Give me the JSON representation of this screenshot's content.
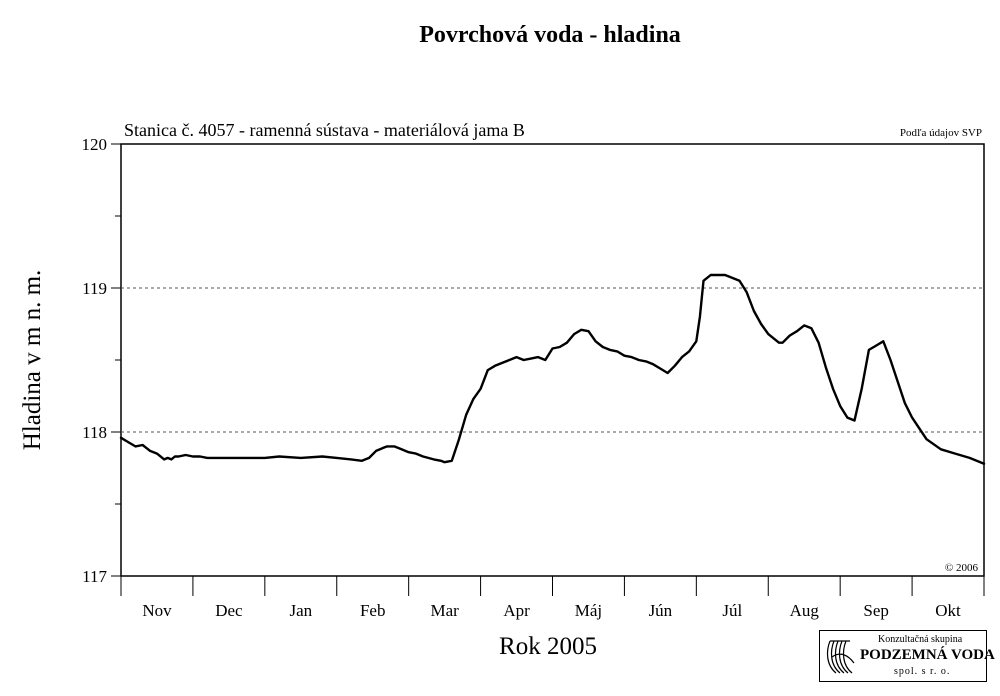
{
  "chart_data": {
    "type": "line",
    "title": "Povrchová voda - hladina",
    "subtitle": "Stanica č. 4057 - ramenná sústava - materiálová jama B",
    "source_note": "Podľa údajov SVP",
    "copyright": "© 2006",
    "xlabel": "Rok 2005",
    "ylabel": "Hladina v m n. m.",
    "ylim": [
      117,
      120
    ],
    "y_ticks": [
      "117",
      "118",
      "119",
      "120"
    ],
    "y_gridlines": [
      118,
      119
    ],
    "months": [
      "Nov",
      "Dec",
      "Jan",
      "Feb",
      "Mar",
      "Apr",
      "Máj",
      "Jún",
      "Júl",
      "Aug",
      "Sep",
      "Okt"
    ],
    "x_range_months": [
      0,
      12
    ],
    "series": [
      {
        "x": [
          0,
          0.1,
          0.2,
          0.3,
          0.35,
          0.4,
          0.5,
          0.6,
          0.65,
          0.7,
          0.75,
          0.8,
          0.9,
          1.0,
          1.1,
          1.2,
          1.3,
          1.5,
          1.7,
          2.0,
          2.2,
          2.5,
          2.8,
          3.0,
          3.2,
          3.35,
          3.45,
          3.55,
          3.65,
          3.7,
          3.8,
          3.9,
          4.0,
          4.1,
          4.2,
          4.35,
          4.45,
          4.5,
          4.6,
          4.7,
          4.8,
          4.9,
          5.0,
          5.1,
          5.2,
          5.3,
          5.4,
          5.5,
          5.6,
          5.7,
          5.8,
          5.9,
          6.0,
          6.1,
          6.2,
          6.3,
          6.4,
          6.5,
          6.6,
          6.7,
          6.8,
          6.9,
          7.0,
          7.1,
          7.2,
          7.3,
          7.4,
          7.5,
          7.6,
          7.7,
          7.8,
          7.9,
          8.0,
          8.05,
          8.1,
          8.2,
          8.3,
          8.4,
          8.5,
          8.6,
          8.7,
          8.8,
          8.9,
          9.0,
          9.1,
          9.15,
          9.2,
          9.3,
          9.4,
          9.5,
          9.6,
          9.7,
          9.8,
          9.9,
          10.0,
          10.1,
          10.2,
          10.3,
          10.4,
          10.5,
          10.6,
          10.7,
          10.8,
          10.9,
          11.0,
          11.2,
          11.4,
          11.6,
          11.8,
          12.0
        ],
        "values": [
          117.96,
          117.93,
          117.9,
          117.91,
          117.89,
          117.87,
          117.85,
          117.81,
          117.82,
          117.81,
          117.83,
          117.83,
          117.84,
          117.83,
          117.83,
          117.82,
          117.82,
          117.82,
          117.82,
          117.82,
          117.83,
          117.82,
          117.83,
          117.82,
          117.81,
          117.8,
          117.82,
          117.87,
          117.89,
          117.9,
          117.9,
          117.88,
          117.86,
          117.85,
          117.83,
          117.81,
          117.8,
          117.79,
          117.8,
          117.95,
          118.12,
          118.23,
          118.3,
          118.43,
          118.46,
          118.48,
          118.5,
          118.52,
          118.5,
          118.51,
          118.52,
          118.5,
          118.58,
          118.59,
          118.62,
          118.68,
          118.71,
          118.7,
          118.63,
          118.59,
          118.57,
          118.56,
          118.53,
          118.52,
          118.5,
          118.49,
          118.47,
          118.44,
          118.41,
          118.46,
          118.52,
          118.56,
          118.63,
          118.8,
          119.05,
          119.09,
          119.09,
          119.09,
          119.07,
          119.05,
          118.97,
          118.84,
          118.75,
          118.68,
          118.64,
          118.62,
          118.62,
          118.67,
          118.7,
          118.74,
          118.72,
          118.62,
          118.45,
          118.3,
          118.18,
          118.1,
          118.08,
          118.3,
          118.57,
          118.6,
          118.63,
          118.5,
          118.35,
          118.2,
          118.1,
          117.95,
          117.88,
          117.85,
          117.82,
          117.78
        ]
      }
    ]
  },
  "logo": {
    "line1": "Konzultačná skupina",
    "line2": "PODZEMNÁ VODA",
    "line3": "spol. s r. o."
  }
}
